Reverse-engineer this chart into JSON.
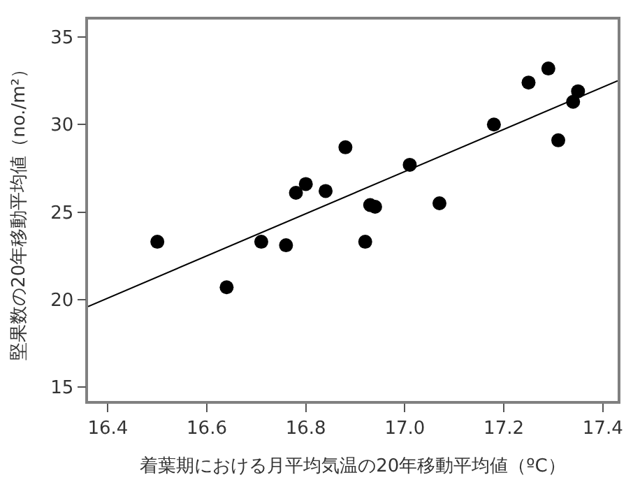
{
  "chart_data": {
    "type": "scatter",
    "xlabel": "着葉期における月平均気温の20年移動平均値（ºC）",
    "ylabel": "堅果数の20年移動平均値（no./m²）",
    "x": [
      16.5,
      16.64,
      16.71,
      16.76,
      16.78,
      16.8,
      16.84,
      16.88,
      17.01,
      16.92,
      16.93,
      16.94,
      17.07,
      17.18,
      17.25,
      17.29,
      17.31,
      17.34,
      17.35
    ],
    "series": [
      {
        "color": "#000000",
        "values": [
          23.3,
          20.7,
          23.3,
          23.1,
          26.1,
          26.6,
          26.2,
          28.7,
          27.7,
          23.3,
          25.4,
          25.3,
          25.5,
          30.0,
          32.4,
          33.2,
          29.1,
          31.3,
          31.9
        ]
      },
      {
        "type": "line",
        "marker": "none",
        "color": "#000000",
        "x": [
          16.36,
          17.43
        ],
        "values": [
          19.6,
          32.5
        ]
      }
    ],
    "marker": "circle",
    "xlim": [
      16.36,
      17.43
    ],
    "ylim": [
      14.2,
      36.0
    ],
    "xticks": [
      {
        "value": 16.4,
        "label": "16.4"
      },
      {
        "value": 16.6,
        "label": "16.6"
      },
      {
        "value": 16.8,
        "label": "16.8"
      },
      {
        "value": 17.0,
        "label": "17.0"
      },
      {
        "value": 17.2,
        "label": "17.2"
      },
      {
        "value": 17.4,
        "label": "17.4"
      }
    ],
    "yticks": [
      15,
      20,
      25,
      30,
      35
    ]
  }
}
